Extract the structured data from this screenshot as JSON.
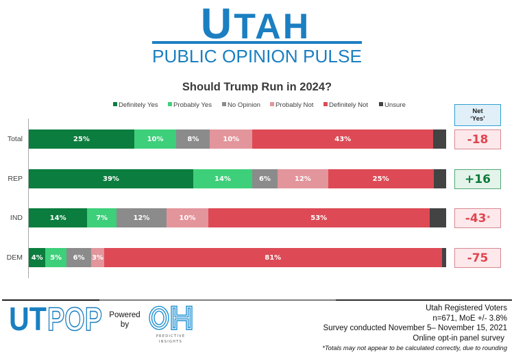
{
  "header": {
    "logo_main": "UTAH",
    "logo_sub": "PUBLIC OPINION PULSE",
    "brand_color": "#1b7fc2"
  },
  "chart_data": {
    "type": "bar",
    "orientation": "horizontal",
    "stacked": true,
    "title": "Should Trump Run in 2024?",
    "xlabel": "",
    "ylabel": "",
    "xlim": [
      0,
      100
    ],
    "unit": "%",
    "grid": false,
    "legend_position": "top",
    "categories": [
      "Total",
      "REP",
      "IND",
      "DEM"
    ],
    "series": [
      {
        "name": "Definitely Yes",
        "color": "#0b7d3e",
        "values": [
          25,
          39,
          14,
          4
        ],
        "show_labels": true
      },
      {
        "name": "Probably Yes",
        "color": "#3ecf7a",
        "values": [
          10,
          14,
          7,
          5
        ],
        "show_labels": true
      },
      {
        "name": "No Opinion",
        "color": "#8b8b8b",
        "values": [
          8,
          6,
          12,
          6
        ],
        "show_labels": true
      },
      {
        "name": "Probably Not",
        "color": "#e3959c",
        "values": [
          10,
          12,
          10,
          3
        ],
        "show_labels": true
      },
      {
        "name": "Definitely Not",
        "color": "#dd4a55",
        "values": [
          43,
          25,
          53,
          81
        ],
        "show_labels": true
      },
      {
        "name": "Unsure",
        "color": "#434343",
        "values": [
          3,
          3,
          4,
          1
        ],
        "show_labels": false
      }
    ],
    "net_yes": {
      "header": [
        "Net",
        "‘Yes’"
      ],
      "values": [
        {
          "value": "-18",
          "tone": "negative"
        },
        {
          "value": "+16",
          "tone": "positive"
        },
        {
          "value": "-43",
          "note": "*",
          "tone": "negative"
        },
        {
          "value": "-75",
          "tone": "negative"
        }
      ],
      "colors": {
        "negative": {
          "text": "#e0444f",
          "bg": "#fde9eb",
          "border": "#d6868f"
        },
        "positive": {
          "text": "#0b7a3a",
          "bg": "#e4f4ea",
          "border": "#4fa874"
        }
      }
    }
  },
  "footer": {
    "logo_solid": "UT",
    "logo_outline": "POP",
    "powered_by": "Powered by",
    "partner_logo_mark": "OH",
    "partner_name": [
      "PREDICTIVE",
      "INSIGHTS"
    ],
    "survey_info": [
      "Utah Registered Voters",
      "n=671, MoE +/- 3.8%",
      "Survey conducted November 5– November 15, 2021",
      "Online opt-in panel survey"
    ],
    "footnote": "*Totals may not appear to be calculated correctly, due to rounding"
  }
}
